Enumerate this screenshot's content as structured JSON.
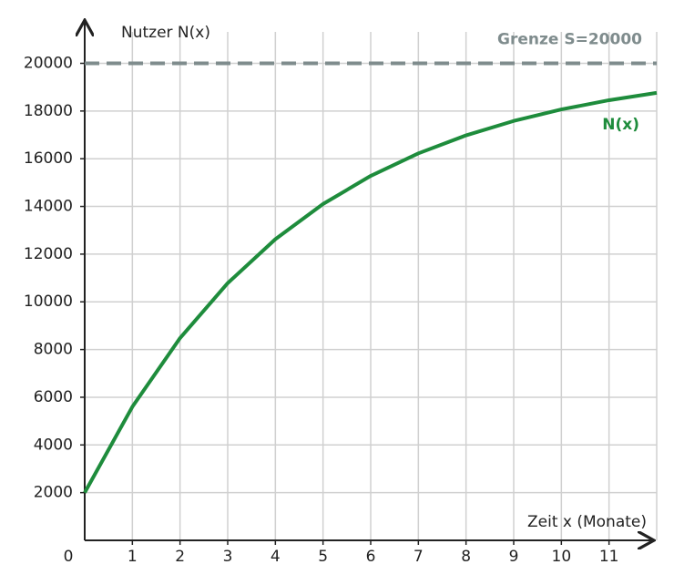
{
  "chart_data": {
    "type": "line",
    "x_label": "Zeit x (Monate)",
    "y_label": "Nutzer N(x)",
    "x": [
      0,
      1,
      2,
      3,
      4,
      5,
      6,
      7,
      8,
      9,
      10,
      11,
      12
    ],
    "series": [
      {
        "name": "N(x)",
        "color": "#1e8c3c",
        "values": [
          2000,
          5600,
          8480,
          10784,
          12627,
          14102,
          15281,
          16225,
          16980,
          17584,
          18067,
          18454,
          18763
        ]
      }
    ],
    "threshold": {
      "value": 20000,
      "label": "Grenze S=20000",
      "color": "#7f8c8d"
    },
    "xlim": [
      0,
      12
    ],
    "ylim": [
      0,
      21700
    ],
    "xticks": [
      0,
      1,
      2,
      3,
      4,
      5,
      6,
      7,
      8,
      9,
      10,
      11
    ],
    "yticks": [
      2000,
      4000,
      6000,
      8000,
      10000,
      12000,
      14000,
      16000,
      18000,
      20000
    ],
    "grid": true
  }
}
